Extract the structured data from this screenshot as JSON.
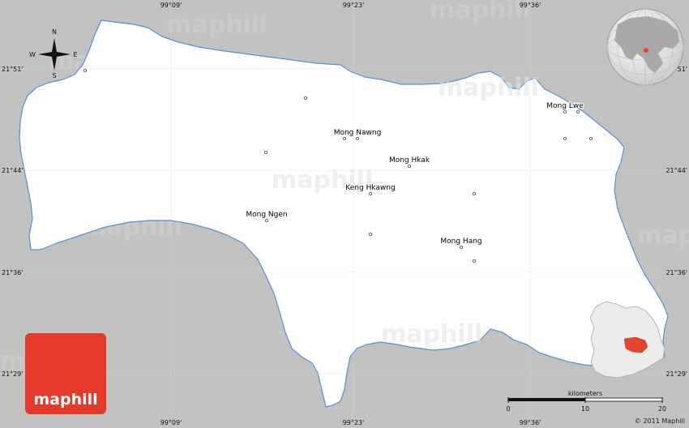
{
  "compass": {
    "n": "N",
    "s": "S",
    "e": "E",
    "w": "W"
  },
  "longitudes": [
    "99°09'",
    "99°23'",
    "99°36'"
  ],
  "latitudes": [
    "21°51'",
    "21°44'",
    "21°36'",
    "21°29'"
  ],
  "places": {
    "mong_lwe": "Mong Lwe",
    "mong_nawng": "Mong Nawng",
    "mong_hkak": "Mong Hkak",
    "keng_hkawng": "Keng Hkawng",
    "mong_ngen": "Mong Ngen",
    "mong_hang": "Mong Hang"
  },
  "scale": {
    "unit": "kilometers",
    "ticks": [
      "0",
      "10",
      "20"
    ]
  },
  "logo": "maphill",
  "watermark": "maphill",
  "credit": "© 2011 Maphill",
  "colors": {
    "background": "#c2c2c2",
    "land": "#ffffff",
    "border": "#5b8fcf",
    "highlight": "#e8432f",
    "logo_bg": "#e5392a"
  }
}
